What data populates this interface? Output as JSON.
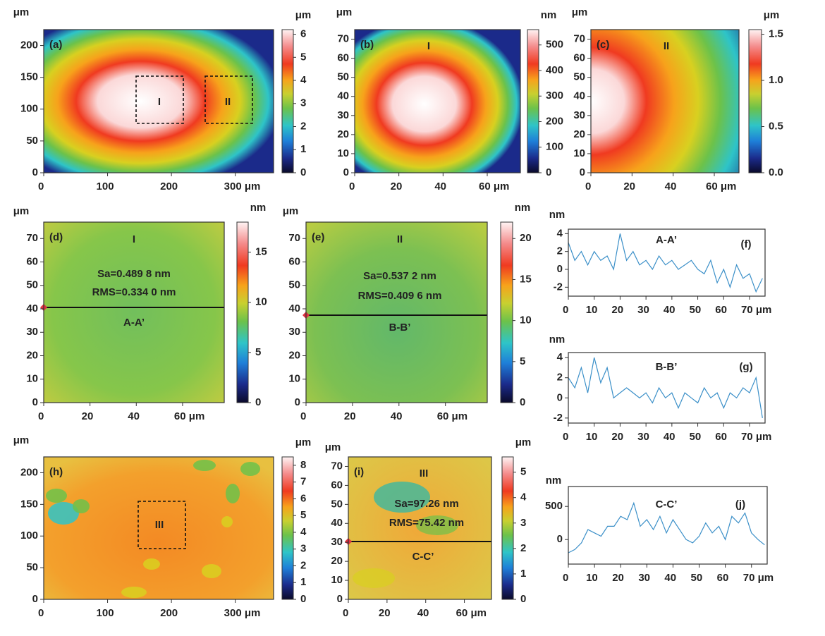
{
  "chart_data": [
    {
      "type": "heatmap",
      "panel_label": "(a)",
      "xlim": [
        0,
        360
      ],
      "xticks": [
        0,
        100,
        200,
        {
          "value": 300,
          "label": "300 μm"
        }
      ],
      "ylim": [
        0,
        225
      ],
      "yticks": [
        0,
        50,
        100,
        150,
        200
      ],
      "y_unit": "μm",
      "clim": [
        0,
        6.2
      ],
      "cticks": [
        0,
        1,
        2,
        3,
        4,
        5,
        6
      ],
      "c_unit": "μm",
      "annotations": [
        "I",
        "II"
      ]
    },
    {
      "type": "heatmap",
      "panel_label": "(b)",
      "xlim": [
        0,
        75
      ],
      "xticks": [
        0,
        20,
        40,
        {
          "value": 60,
          "label": "60 μm"
        }
      ],
      "ylim": [
        0,
        75
      ],
      "yticks": [
        0,
        10,
        20,
        30,
        40,
        50,
        60,
        70
      ],
      "y_unit": "μm",
      "clim": [
        0,
        560
      ],
      "cticks": [
        0,
        100,
        200,
        300,
        400,
        500
      ],
      "c_unit": "nm",
      "annotations": [
        "I"
      ]
    },
    {
      "type": "heatmap",
      "panel_label": "(c)",
      "xlim": [
        0,
        72
      ],
      "xticks": [
        0,
        20,
        40,
        {
          "value": 60,
          "label": "60 μm"
        }
      ],
      "ylim": [
        0,
        75
      ],
      "yticks": [
        0,
        10,
        20,
        30,
        40,
        50,
        60,
        70
      ],
      "y_unit": "μm",
      "clim": [
        0,
        1.55
      ],
      "cticks": [
        {
          "value": 0,
          "label": "0.0"
        },
        {
          "value": 0.5,
          "label": "0.5"
        },
        {
          "value": 1,
          "label": "1.0"
        },
        {
          "value": 1.5,
          "label": "1.5"
        }
      ],
      "c_unit": "μm",
      "annotations": [
        "II"
      ]
    },
    {
      "type": "heatmap",
      "panel_label": "(d)",
      "xlim": [
        0,
        78
      ],
      "xticks": [
        0,
        20,
        40,
        {
          "value": 60,
          "label": "60 μm"
        }
      ],
      "ylim": [
        0,
        77
      ],
      "yticks": [
        0,
        10,
        20,
        30,
        40,
        50,
        60,
        70
      ],
      "y_unit": "μm",
      "clim": [
        0,
        18
      ],
      "cticks": [
        0,
        5,
        10,
        15
      ],
      "c_unit": "nm",
      "annotations": [
        "I",
        "Sa=0.489 8 nm",
        "RMS=0.334 0 nm",
        "A-A’"
      ]
    },
    {
      "type": "heatmap",
      "panel_label": "(e)",
      "xlim": [
        0,
        78
      ],
      "xticks": [
        0,
        20,
        40,
        {
          "value": 60,
          "label": "60 μm"
        }
      ],
      "ylim": [
        0,
        77
      ],
      "yticks": [
        0,
        10,
        20,
        30,
        40,
        50,
        60,
        70
      ],
      "y_unit": "μm",
      "clim": [
        0,
        22
      ],
      "cticks": [
        0,
        5,
        10,
        15,
        20
      ],
      "c_unit": "nm",
      "annotations": [
        "II",
        "Sa=0.537 2 nm",
        "RMS=0.409 6 nm",
        "B-B’"
      ]
    },
    {
      "type": "line",
      "panel_label": "(f)",
      "title": "A-A’",
      "x": [
        0,
        2.5,
        5,
        7.5,
        10,
        12.5,
        15,
        17.5,
        20,
        22.5,
        25,
        27.5,
        30,
        32.5,
        35,
        37.5,
        40,
        42.5,
        45,
        47.5,
        50,
        52.5,
        55,
        57.5,
        60,
        62.5,
        65,
        67.5,
        70,
        72.5,
        75
      ],
      "values": [
        3,
        1,
        2,
        0.5,
        2,
        1,
        1.5,
        0,
        4,
        1,
        2,
        0.5,
        1,
        0,
        1.5,
        0.5,
        1,
        0,
        0.5,
        1,
        0,
        -0.5,
        1,
        -1.5,
        0,
        -2,
        0.5,
        -1,
        -0.5,
        -2.5,
        -1
      ],
      "color": "#3a8fc8",
      "xlim": [
        0,
        76
      ],
      "xticks": [
        0,
        10,
        20,
        30,
        40,
        50,
        60,
        {
          "value": 70,
          "label": "70 μm"
        }
      ],
      "ylim": [
        -3,
        4.5
      ],
      "yticks": [
        -2,
        0,
        2,
        4
      ],
      "y_unit": "nm"
    },
    {
      "type": "line",
      "panel_label": "(g)",
      "title": "B-B’",
      "x": [
        0,
        2.5,
        5,
        7.5,
        10,
        12.5,
        15,
        17.5,
        20,
        22.5,
        25,
        27.5,
        30,
        32.5,
        35,
        37.5,
        40,
        42.5,
        45,
        47.5,
        50,
        52.5,
        55,
        57.5,
        60,
        62.5,
        65,
        67.5,
        70,
        72.5,
        75
      ],
      "values": [
        2,
        1,
        3,
        0.5,
        4,
        1.5,
        3,
        0,
        0.5,
        1,
        0.5,
        0,
        0.5,
        -0.5,
        1,
        0,
        0.5,
        -1,
        0.5,
        0,
        -0.5,
        1,
        0,
        0.5,
        -1,
        0.5,
        0,
        1,
        0.5,
        2,
        -2
      ],
      "color": "#3a8fc8",
      "xlim": [
        0,
        76
      ],
      "xticks": [
        0,
        10,
        20,
        30,
        40,
        50,
        60,
        {
          "value": 70,
          "label": "70 μm"
        }
      ],
      "ylim": [
        -2.5,
        4.5
      ],
      "yticks": [
        -2,
        0,
        2,
        4
      ],
      "y_unit": "nm"
    },
    {
      "type": "heatmap",
      "panel_label": "(h)",
      "xlim": [
        0,
        360
      ],
      "xticks": [
        0,
        100,
        200,
        {
          "value": 300,
          "label": "300 μm"
        }
      ],
      "ylim": [
        0,
        225
      ],
      "yticks": [
        0,
        50,
        100,
        150,
        200
      ],
      "y_unit": "μm",
      "clim": [
        0,
        8.5
      ],
      "cticks": [
        0,
        1,
        2,
        3,
        4,
        5,
        6,
        7,
        8
      ],
      "c_unit": "μm",
      "annotations": [
        "III"
      ]
    },
    {
      "type": "heatmap",
      "panel_label": "(i)",
      "xlim": [
        0,
        74
      ],
      "xticks": [
        0,
        20,
        40,
        {
          "value": 60,
          "label": "60 μm"
        }
      ],
      "ylim": [
        0,
        75
      ],
      "yticks": [
        0,
        10,
        20,
        30,
        40,
        50,
        60,
        70
      ],
      "y_unit": "μm",
      "clim": [
        0,
        5.6
      ],
      "cticks": [
        0,
        1,
        2,
        3,
        4,
        5
      ],
      "c_unit": "μm",
      "annotations": [
        "III",
        "Sa=97.26 nm",
        "RMS=75.42 nm",
        "C-C’"
      ]
    },
    {
      "type": "line",
      "panel_label": "(j)",
      "title": "C-C’",
      "x": [
        0,
        2.5,
        5,
        7.5,
        10,
        12.5,
        15,
        17.5,
        20,
        22.5,
        25,
        27.5,
        30,
        32.5,
        35,
        37.5,
        40,
        42.5,
        45,
        47.5,
        50,
        52.5,
        55,
        57.5,
        60,
        62.5,
        65,
        67.5,
        70,
        72.5,
        75
      ],
      "values": [
        -200,
        -150,
        -50,
        150,
        100,
        50,
        200,
        200,
        350,
        300,
        550,
        200,
        300,
        150,
        350,
        100,
        300,
        150,
        0,
        -50,
        50,
        250,
        100,
        200,
        0,
        350,
        250,
        400,
        100,
        0,
        -80
      ],
      "color": "#3a8fc8",
      "xlim": [
        0,
        76
      ],
      "xticks": [
        0,
        10,
        20,
        30,
        40,
        50,
        60,
        {
          "value": 70,
          "label": "70 μm"
        }
      ],
      "ylim": [
        -370,
        800
      ],
      "yticks": [
        0,
        500
      ],
      "y_unit": "nm"
    }
  ]
}
